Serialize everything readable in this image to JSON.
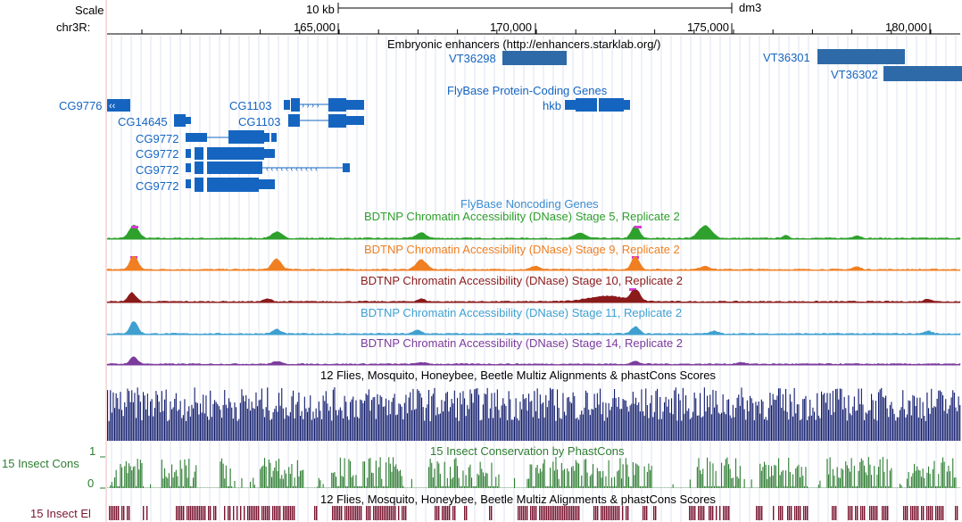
{
  "ruler": {
    "scale_label": "Scale",
    "scale_bar_text": "10 kb",
    "assembly": "dm3",
    "chrom_label": "chr3R:",
    "ticks": [
      "165,000",
      "170,000",
      "175,000",
      "180,000"
    ]
  },
  "tracks": {
    "enhancers": {
      "title": "Embryonic enhancers (http://enhancers.starklab.org/)",
      "color": "#2e6aa8",
      "items": [
        "VT36298",
        "VT36301",
        "VT36302"
      ]
    },
    "genes": {
      "title": "FlyBase Protein-Coding Genes",
      "color": "#1565c0",
      "items": [
        "CG9776",
        "CG14645",
        "CG1103",
        "CG1103",
        "CG9772",
        "CG9772",
        "CG9772",
        "CG9772",
        "hkb"
      ]
    },
    "noncoding": {
      "title": "FlyBase Noncoding Genes"
    },
    "dnase": [
      {
        "title": "BDTNP Chromatin Accessibility (DNase) Stage 5, Replicate 2",
        "color": "#2ea02c"
      },
      {
        "title": "BDTNP Chromatin Accessibility (DNase) Stage 9, Replicate 2",
        "color": "#f07f21"
      },
      {
        "title": "BDTNP Chromatin Accessibility (DNase) Stage 10, Replicate 2",
        "color": "#8b1a1a"
      },
      {
        "title": "BDTNP Chromatin Accessibility (DNase) Stage 11, Replicate 2",
        "color": "#3fa0d0"
      },
      {
        "title": "BDTNP Chromatin Accessibility (DNase) Stage 14, Replicate 2",
        "color": "#7b3b9c"
      }
    ],
    "multiz": {
      "title": "12 Flies, Mosquito, Honeybee, Beetle Multiz Alignments & phastCons Scores",
      "color": "#0f1a6b"
    },
    "phastcons": {
      "title": "15 Insect Conservation by PhastCons",
      "side_label": "15 Insect Cons",
      "axis_max": "1",
      "axis_min": "0",
      "color": "#2e7d32"
    },
    "elements": {
      "title": "12 Flies, Mosquito, Honeybee, Beetle Multiz Alignments & phastCons Scores",
      "side_label": "15 Insect El",
      "color": "#7a1530"
    }
  }
}
